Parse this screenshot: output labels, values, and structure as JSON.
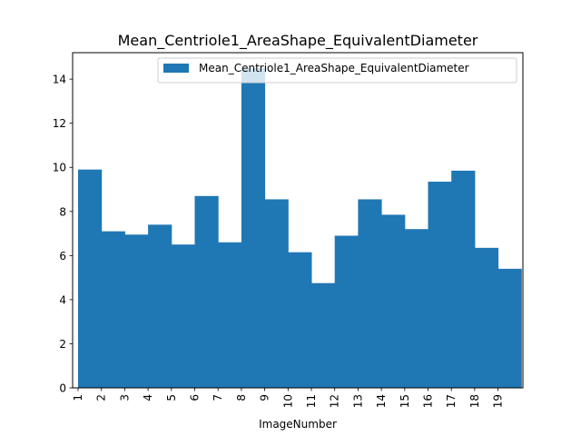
{
  "chart_data": {
    "type": "bar",
    "title": "Mean_Centriole1_AreaShape_EquivalentDiameter",
    "xlabel": "ImageNumber",
    "ylabel": "",
    "categories": [
      "1",
      "2",
      "3",
      "4",
      "5",
      "6",
      "7",
      "8",
      "9",
      "10",
      "11",
      "12",
      "13",
      "14",
      "15",
      "16",
      "17",
      "18",
      "19"
    ],
    "series": [
      {
        "name": "Mean_Centriole1_AreaShape_EquivalentDiameter",
        "values": [
          9.9,
          7.1,
          6.95,
          7.4,
          6.5,
          8.7,
          6.6,
          14.5,
          8.55,
          6.15,
          4.75,
          6.9,
          8.55,
          7.85,
          7.2,
          9.35,
          9.85,
          6.35,
          5.4
        ]
      }
    ],
    "yticks": [
      0,
      2,
      4,
      6,
      8,
      10,
      12,
      14
    ],
    "ylim": [
      0,
      15.2
    ],
    "legend_position": "top-right",
    "grid": false,
    "bar_color": "#1f77b4"
  }
}
